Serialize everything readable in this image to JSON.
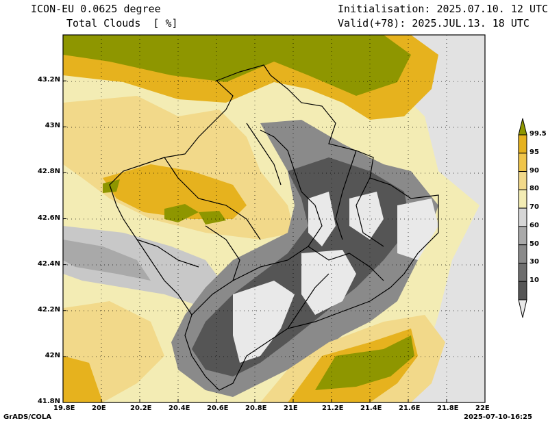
{
  "header": {
    "model": "ICON-EU 0.0625 degree",
    "field": "Total Clouds  [ %]",
    "init": "Initialisation: 2025.07.10. 12 UTC",
    "valid": "Valid(+78): 2025.JUL.13. 18 UTC"
  },
  "footer": {
    "software": "GrADS/COLA",
    "timestamp": "2025-07-10-16:25"
  },
  "map": {
    "lat_labels": [
      "43.2N",
      "43N",
      "42.8N",
      "42.6N",
      "42.4N",
      "42.2N",
      "42N",
      "41.8N"
    ],
    "lon_labels": [
      "19.8E",
      "20E",
      "20.2E",
      "20.4E",
      "20.6E",
      "20.8E",
      "21E",
      "21.2E",
      "21.4E",
      "21.6E",
      "21.8E",
      "22E"
    ],
    "lon_range": [
      19.8,
      22.0
    ],
    "lat_range": [
      41.8,
      43.4
    ],
    "unit": "%"
  },
  "legend": {
    "levels": [
      "99.5",
      "95",
      "90",
      "80",
      "70",
      "60",
      "50",
      "30",
      "10"
    ],
    "colors": [
      "#8e9600",
      "#e6b21e",
      "#f0c54a",
      "#f2d98a",
      "#f3ecb4",
      "#d6d6d6",
      "#a9a9a9",
      "#8a8a8a",
      "#6e6e6e",
      "#555555",
      "#e9e9e9"
    ]
  }
}
